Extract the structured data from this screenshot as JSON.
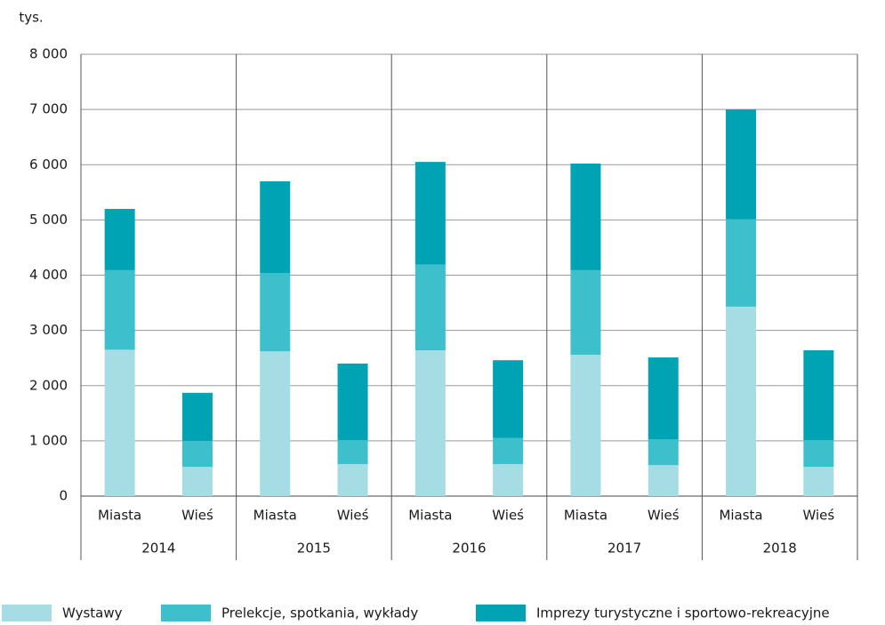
{
  "chart_data": {
    "type": "stacked_bar",
    "y_label": "tys.",
    "categories": [
      "Miasta",
      "Wieś",
      "Miasta",
      "Wieś",
      "Miasta",
      "Wieś",
      "Miasta",
      "Wieś",
      "Miasta",
      "Wieś"
    ],
    "groups": [
      "2014",
      "2015",
      "2016",
      "2017",
      "2018"
    ],
    "series": [
      {
        "name": "Wystawy",
        "color": "#a6dce3",
        "values": [
          2650,
          530,
          2620,
          580,
          2640,
          580,
          2560,
          560,
          3430,
          530
        ]
      },
      {
        "name": "Prelekcje, spotkania, wykłady",
        "color": "#3dbfcc",
        "values": [
          1440,
          470,
          1420,
          430,
          1550,
          470,
          1530,
          470,
          1580,
          480
        ]
      },
      {
        "name": "Imprezy turystyczne i sportowo-rekreacyjne",
        "color": "#00a3b4",
        "values": [
          1110,
          870,
          1660,
          1390,
          1860,
          1410,
          1930,
          1480,
          1990,
          1630
        ]
      }
    ],
    "ylim": [
      0,
      8000
    ],
    "yticks": [
      0,
      {
        "value": 1000,
        "label": "1 000"
      },
      {
        "value": 2000,
        "label": "2 000"
      },
      {
        "value": 3000,
        "label": "3 000"
      },
      {
        "value": 4000,
        "label": "4 000"
      },
      {
        "value": 5000,
        "label": "5 000"
      },
      {
        "value": 6000,
        "label": "6 000"
      },
      {
        "value": 7000,
        "label": "7 000"
      },
      {
        "value": 8000,
        "label": "8 000"
      }
    ],
    "grid": true
  }
}
